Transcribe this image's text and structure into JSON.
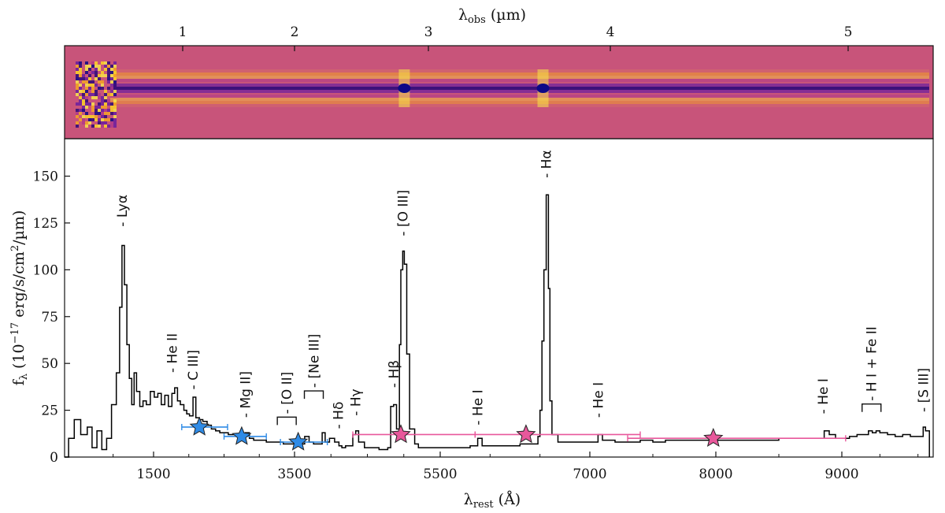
{
  "chart_data": [
    {
      "type": "heatmap",
      "name": "2d-spectrum",
      "description_colormap": "plasma",
      "background_color": "#c8547a",
      "xlabel": "λobs (µm)",
      "x_ticks": [
        "1",
        "2",
        "3",
        "4",
        "5"
      ],
      "features": [
        {
          "obs_um": 0.55,
          "kind": "noisy-blue-edge"
        },
        {
          "obs_um": 2.82,
          "kind": "bright-core"
        },
        {
          "obs_um": 3.63,
          "kind": "bright-core"
        }
      ]
    },
    {
      "type": "line",
      "name": "1d-spectrum",
      "step": true,
      "xlabel": "λrest (Å)",
      "ylabel": "fλ (10−17 erg/s/cm²/µm)",
      "x_ticks": [
        "1500",
        "3500",
        "5500",
        "7000",
        "8000",
        "9000"
      ],
      "y_ticks": [
        "0",
        "25",
        "50",
        "75",
        "100",
        "125",
        "150"
      ],
      "ylim": [
        0,
        170
      ],
      "series": [
        {
          "color": "#000000",
          "points": [
            [
              400,
              0
            ],
            [
              450,
              10
            ],
            [
              520,
              20
            ],
            [
              600,
              12
            ],
            [
              680,
              16
            ],
            [
              740,
              5
            ],
            [
              800,
              14
            ],
            [
              860,
              4
            ],
            [
              920,
              10
            ],
            [
              980,
              28
            ],
            [
              1040,
              45
            ],
            [
              1080,
              80
            ],
            [
              1110,
              113
            ],
            [
              1140,
              92
            ],
            [
              1170,
              60
            ],
            [
              1200,
              42
            ],
            [
              1230,
              28
            ],
            [
              1260,
              45
            ],
            [
              1290,
              35
            ],
            [
              1330,
              27
            ],
            [
              1370,
              30
            ],
            [
              1410,
              28
            ],
            [
              1460,
              35
            ],
            [
              1510,
              32
            ],
            [
              1560,
              34
            ],
            [
              1610,
              28
            ],
            [
              1660,
              33
            ],
            [
              1710,
              27
            ],
            [
              1760,
              34
            ],
            [
              1800,
              37
            ],
            [
              1840,
              30
            ],
            [
              1880,
              28
            ],
            [
              1930,
              25
            ],
            [
              1970,
              23
            ],
            [
              2010,
              22
            ],
            [
              2060,
              32
            ],
            [
              2100,
              21
            ],
            [
              2150,
              20
            ],
            [
              2200,
              19
            ],
            [
              2260,
              17
            ],
            [
              2320,
              15
            ],
            [
              2380,
              14
            ],
            [
              2440,
              13
            ],
            [
              2500,
              13
            ],
            [
              2560,
              12
            ],
            [
              2620,
              12
            ],
            [
              2680,
              11
            ],
            [
              2740,
              10
            ],
            [
              2800,
              13
            ],
            [
              2860,
              10
            ],
            [
              2920,
              9
            ],
            [
              2980,
              9
            ],
            [
              3040,
              9
            ],
            [
              3100,
              8
            ],
            [
              3160,
              8
            ],
            [
              3220,
              8
            ],
            [
              3280,
              8
            ],
            [
              3340,
              7
            ],
            [
              3400,
              7
            ],
            [
              3460,
              7
            ],
            [
              3520,
              7
            ],
            [
              3580,
              7
            ],
            [
              3640,
              11
            ],
            [
              3700,
              8
            ],
            [
              3760,
              7
            ],
            [
              3820,
              7
            ],
            [
              3880,
              13
            ],
            [
              3920,
              8
            ],
            [
              3980,
              10
            ],
            [
              4050,
              8
            ],
            [
              4110,
              6
            ],
            [
              4150,
              5
            ],
            [
              4200,
              6
            ],
            [
              4260,
              6
            ],
            [
              4300,
              12
            ],
            [
              4340,
              14
            ],
            [
              4380,
              8
            ],
            [
              4460,
              5
            ],
            [
              4560,
              5
            ],
            [
              4660,
              4
            ],
            [
              4780,
              5
            ],
            [
              4820,
              27
            ],
            [
              4860,
              28
            ],
            [
              4900,
              15
            ],
            [
              4940,
              60
            ],
            [
              4960,
              100
            ],
            [
              4985,
              110
            ],
            [
              5007,
              103
            ],
            [
              5040,
              55
            ],
            [
              5080,
              15
            ],
            [
              5150,
              7
            ],
            [
              5200,
              5
            ],
            [
              5300,
              5
            ],
            [
              5400,
              5
            ],
            [
              5500,
              5
            ],
            [
              5600,
              5
            ],
            [
              5700,
              5
            ],
            [
              5800,
              6
            ],
            [
              5876,
              10
            ],
            [
              5920,
              6
            ],
            [
              6000,
              6
            ],
            [
              6100,
              6
            ],
            [
              6200,
              6
            ],
            [
              6300,
              7
            ],
            [
              6400,
              7
            ],
            [
              6480,
              11
            ],
            [
              6500,
              25
            ],
            [
              6520,
              62
            ],
            [
              6540,
              100
            ],
            [
              6563,
              140
            ],
            [
              6585,
              90
            ],
            [
              6600,
              30
            ],
            [
              6620,
              12
            ],
            [
              6680,
              8
            ],
            [
              6760,
              8
            ],
            [
              6840,
              8
            ],
            [
              6920,
              8
            ],
            [
              7000,
              8
            ],
            [
              7065,
              12
            ],
            [
              7100,
              9
            ],
            [
              7200,
              8
            ],
            [
              7300,
              8
            ],
            [
              7400,
              9
            ],
            [
              7500,
              8
            ],
            [
              7600,
              9
            ],
            [
              7700,
              9
            ],
            [
              7800,
              9
            ],
            [
              7900,
              9
            ],
            [
              8000,
              9
            ],
            [
              8100,
              9
            ],
            [
              8200,
              9
            ],
            [
              8300,
              9
            ],
            [
              8400,
              9
            ],
            [
              8500,
              10
            ],
            [
              8600,
              10
            ],
            [
              8700,
              10
            ],
            [
              8800,
              10
            ],
            [
              8860,
              14
            ],
            [
              8900,
              12
            ],
            [
              8950,
              10
            ],
            [
              9000,
              10
            ],
            [
              9100,
              11
            ],
            [
              9200,
              12
            ],
            [
              9300,
              12
            ],
            [
              9350,
              14
            ],
            [
              9400,
              13
            ],
            [
              9450,
              14
            ],
            [
              9500,
              13
            ],
            [
              9600,
              12
            ],
            [
              9700,
              11
            ],
            [
              9800,
              12
            ],
            [
              9900,
              11
            ],
            [
              10000,
              11
            ],
            [
              10069,
              16
            ],
            [
              10100,
              14
            ],
            [
              10150,
              0
            ]
          ]
        }
      ],
      "photometry": [
        {
          "color": "#2f8be6",
          "marker": "star",
          "x": 2150,
          "y": 16,
          "xerr": [
            1900,
            2550
          ]
        },
        {
          "color": "#2f8be6",
          "marker": "star",
          "x": 2750,
          "y": 11,
          "xerr": [
            2500,
            3100
          ]
        },
        {
          "color": "#2f8be6",
          "marker": "star",
          "x": 3550,
          "y": 8,
          "xerr": [
            3300,
            3950
          ]
        },
        {
          "color": "#e8589b",
          "marker": "star",
          "x": 4960,
          "y": 12,
          "xerr": [
            4300,
            5850
          ]
        },
        {
          "color": "#e8589b",
          "marker": "star",
          "x": 6360,
          "y": 12,
          "xerr": [
            5850,
            7400
          ]
        },
        {
          "color": "#e8589b",
          "marker": "star",
          "x": 7980,
          "y": 10,
          "xerr": [
            7300,
            9050
          ]
        }
      ],
      "line_labels": [
        {
          "text": "Lyα",
          "x": 1110,
          "y": 123
        },
        {
          "text": "He II",
          "x": 1760,
          "y": 45
        },
        {
          "text": "C III]",
          "x": 2060,
          "y": 36
        },
        {
          "text": "Mg II]",
          "x": 2800,
          "y": 21
        },
        {
          "text": "[O II]",
          "x": 3390,
          "y": 23,
          "bracket": true
        },
        {
          "text": "[Ne III]",
          "x": 3765,
          "y": 37,
          "bracket": true
        },
        {
          "text": "Hδ",
          "x": 4101,
          "y": 15
        },
        {
          "text": "Hγ",
          "x": 4340,
          "y": 22
        },
        {
          "text": "Hβ",
          "x": 4861,
          "y": 37
        },
        {
          "text": "[O III]",
          "x": 4985,
          "y": 118
        },
        {
          "text": "He I",
          "x": 5876,
          "y": 17
        },
        {
          "text": "Hα",
          "x": 6563,
          "y": 149
        },
        {
          "text": "He I",
          "x": 7065,
          "y": 21
        },
        {
          "text": "He I",
          "x": 8850,
          "y": 23
        },
        {
          "text": "H I + Fe II",
          "x": 9390,
          "y": 30,
          "bracket": true
        },
        {
          "text": "[S III]",
          "x": 10069,
          "y": 24
        }
      ]
    }
  ]
}
